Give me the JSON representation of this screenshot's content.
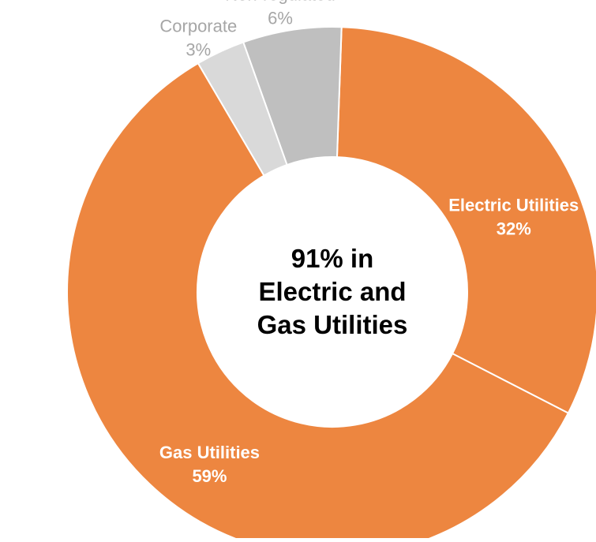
{
  "chart_data": {
    "type": "pie",
    "donut": true,
    "title": "",
    "center_text": [
      "91% in",
      "Electric and",
      "Gas Utilities"
    ],
    "start_angle_deg": 88,
    "direction": "clockwise",
    "slices": [
      {
        "name": "Electric Utilities",
        "value": 32,
        "label": "32%",
        "color": "#ed8640",
        "label_style": "inside"
      },
      {
        "name": "Gas Utilities",
        "value": 59,
        "label": "59%",
        "color": "#ed8640",
        "label_style": "inside"
      },
      {
        "name": "Corporate",
        "value": 3,
        "label": "3%",
        "color": "#d9d9d9",
        "label_style": "outside"
      },
      {
        "name": "Non-regulated",
        "value": 6,
        "label": "6%",
        "color": "#bfbfbf",
        "label_style": "outside"
      }
    ],
    "slice_border_color": "#ffffff",
    "label_color_inside": "#ffffff",
    "label_color_outside": "#a6a6a6"
  }
}
